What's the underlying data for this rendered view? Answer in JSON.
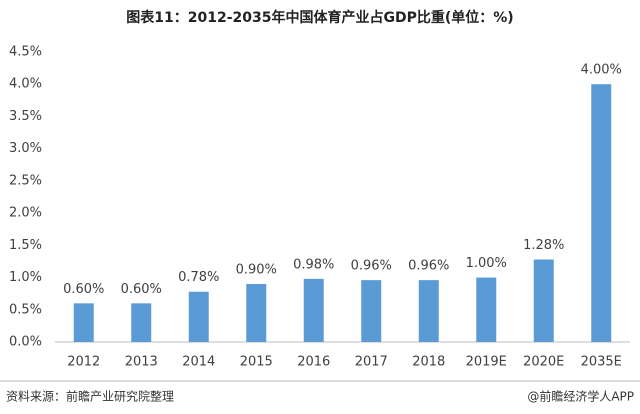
{
  "chart_data": {
    "type": "bar",
    "title": "图表11：2012-2035年中国体育产业占GDP比重(单位：%)",
    "categories": [
      "2012",
      "2013",
      "2014",
      "2015",
      "2016",
      "2017",
      "2018",
      "2019E",
      "2020E",
      "2035E"
    ],
    "values": [
      0.6,
      0.6,
      0.78,
      0.9,
      0.98,
      0.96,
      0.96,
      1.0,
      1.28,
      4.0
    ],
    "value_labels": [
      "0.60%",
      "0.60%",
      "0.78%",
      "0.90%",
      "0.98%",
      "0.96%",
      "0.96%",
      "1.00%",
      "1.28%",
      "4.00%"
    ],
    "color": "#5b9bd5",
    "ylim": [
      0,
      4.5
    ],
    "yticks": [
      {
        "value": 0,
        "label": "0.0%"
      },
      {
        "value": 0.5,
        "label": "0.5%"
      },
      {
        "value": 1.0,
        "label": "1.0%"
      },
      {
        "value": 1.5,
        "label": "1.5%"
      },
      {
        "value": 2.0,
        "label": "2.0%"
      },
      {
        "value": 2.5,
        "label": "2.5%"
      },
      {
        "value": 3.0,
        "label": "3.0%"
      },
      {
        "value": 3.5,
        "label": "3.5%"
      },
      {
        "value": 4.0,
        "label": "4.0%"
      },
      {
        "value": 4.5,
        "label": "4.5%"
      }
    ],
    "grid": false,
    "source": "资料来源：前瞻产业研究院整理",
    "credit": "@前瞻经济学人APP"
  }
}
